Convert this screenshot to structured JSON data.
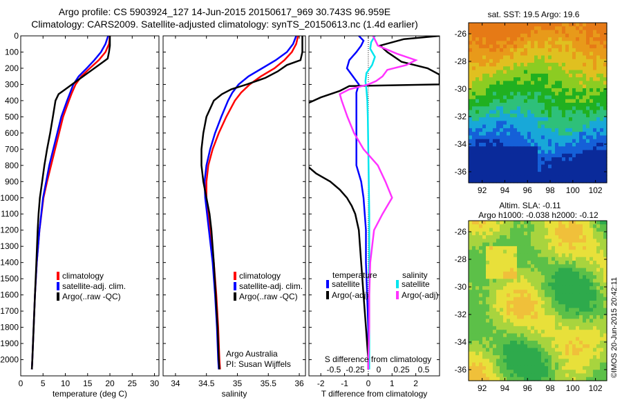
{
  "header": {
    "title_line1": "Argo profile: CS 5903924_127 14-Jun-2015 20150617_969 30.743S 96.959E",
    "title_line2": "Climatology: CARS2009. Satellite-adjusted climatology: synTS_20150613.nc (1.4d earlier)"
  },
  "colors": {
    "red": "#ff0000",
    "blue": "#0000ff",
    "black": "#000000",
    "cyan": "#00e5ee",
    "magenta": "#ff33ff"
  },
  "credit": "©IMOS 20-Jun-2015 20:42:11",
  "chart_data": [
    {
      "type": "line",
      "xlabel": "temperature (deg C)",
      "ylabel": "",
      "xlim": [
        0,
        31
      ],
      "ylim": [
        2100,
        0
      ],
      "xticks": [
        "0",
        "5",
        "10",
        "15",
        "20",
        "25",
        "30"
      ],
      "yticks": [
        "0",
        "100",
        "200",
        "300",
        "400",
        "500",
        "600",
        "700",
        "800",
        "900",
        "1000",
        "1100",
        "1200",
        "1300",
        "1400",
        "1500",
        "1600",
        "1700",
        "1800",
        "1900",
        "2000"
      ],
      "legend": [
        "climatology",
        "satellite-adj. clim.",
        "Argo(..raw -QC)"
      ],
      "legend_placement": "lower-middle",
      "series": [
        {
          "name": "climatology",
          "color": "red",
          "depth": [
            0,
            50,
            100,
            150,
            200,
            250,
            300,
            350,
            400,
            500,
            600,
            700,
            800,
            900,
            1000,
            1200,
            1400,
            1600,
            1800,
            2000,
            2060
          ],
          "values": [
            20,
            19.8,
            19,
            17.5,
            15.5,
            13.6,
            12.3,
            11.5,
            10.8,
            9.5,
            8.6,
            7.7,
            6.8,
            5.9,
            5.1,
            4.2,
            3.6,
            3.2,
            2.9,
            2.6,
            2.5
          ]
        },
        {
          "name": "satellite-adj. clim.",
          "color": "blue",
          "depth": [
            0,
            50,
            100,
            150,
            200,
            250,
            300,
            350,
            400,
            500,
            600,
            700,
            800,
            900,
            1000,
            1200,
            1400,
            1600,
            1800,
            2000,
            2060
          ],
          "values": [
            19.6,
            19,
            18,
            16.5,
            14.8,
            13,
            11.8,
            11.1,
            10.4,
            9.1,
            8.2,
            7.3,
            6.4,
            5.7,
            5,
            4.2,
            3.6,
            3.2,
            2.9,
            2.6,
            2.5
          ]
        },
        {
          "name": "Argo(..raw -QC)",
          "color": "black",
          "depth": [
            0,
            20,
            60,
            100,
            140,
            160,
            200,
            250,
            300,
            330,
            360,
            400,
            500,
            600,
            700,
            800,
            900,
            1000,
            1100,
            1200,
            1400,
            1600,
            1800,
            2000,
            2060
          ],
          "values": [
            20,
            20,
            20,
            19.8,
            19.5,
            18.5,
            16.5,
            14,
            11.5,
            10,
            8.5,
            7.8,
            7.2,
            6.6,
            5.9,
            5.3,
            4.8,
            4.3,
            4,
            3.8,
            3.5,
            3.2,
            2.9,
            2.6,
            2.5
          ]
        }
      ]
    },
    {
      "type": "line",
      "xlabel": "salinity",
      "ylabel": "",
      "xlim": [
        33.8,
        36.1
      ],
      "ylim": [
        2100,
        0
      ],
      "xticks": [
        "34",
        "34.5",
        "35",
        "35.5",
        "36"
      ],
      "legend": [
        "climatology",
        "satellite-adj. clim.",
        "Argo(..raw -QC)"
      ],
      "legend_placement": "lower-middle",
      "annotation": [
        "Argo Australia",
        "PI: Susan Wijffels"
      ],
      "series": [
        {
          "name": "climatology",
          "color": "red",
          "depth": [
            0,
            50,
            100,
            150,
            200,
            250,
            300,
            350,
            400,
            500,
            600,
            700,
            800,
            900,
            1000,
            1200,
            1400,
            1600,
            1800,
            2000,
            2060
          ],
          "values": [
            35.98,
            35.95,
            35.88,
            35.76,
            35.6,
            35.38,
            35.2,
            35.06,
            34.96,
            34.82,
            34.7,
            34.6,
            34.53,
            34.5,
            34.5,
            34.56,
            34.62,
            34.66,
            34.69,
            34.71,
            34.72
          ]
        },
        {
          "name": "satellite-adj. clim.",
          "color": "blue",
          "depth": [
            0,
            50,
            100,
            150,
            200,
            250,
            300,
            350,
            400,
            500,
            600,
            700,
            800,
            900,
            1000,
            1200,
            1400,
            1600,
            1800,
            2000,
            2060
          ],
          "values": [
            35.95,
            35.9,
            35.8,
            35.62,
            35.4,
            35.18,
            35.02,
            34.92,
            34.85,
            34.74,
            34.64,
            34.56,
            34.5,
            34.47,
            34.48,
            34.54,
            34.6,
            34.64,
            34.67,
            34.69,
            34.7
          ]
        },
        {
          "name": "Argo(..raw -QC)",
          "color": "black",
          "depth": [
            0,
            30,
            100,
            150,
            180,
            220,
            260,
            300,
            330,
            360,
            400,
            500,
            600,
            700,
            800,
            900,
            1000,
            1100,
            1200,
            1400,
            1600,
            1800,
            2000,
            2060
          ],
          "values": [
            36.05,
            36.05,
            36.05,
            36.02,
            35.8,
            35.65,
            35.45,
            35.15,
            34.9,
            34.75,
            34.62,
            34.5,
            34.45,
            34.42,
            34.42,
            34.45,
            34.5,
            34.55,
            34.58,
            34.62,
            34.65,
            34.68,
            34.7,
            34.71
          ]
        }
      ]
    },
    {
      "type": "line",
      "xlabel": "T difference from climatology",
      "xlabel2": "S difference from climatology",
      "xlim": [
        -2.5,
        3
      ],
      "ylim": [
        2100,
        0
      ],
      "xticks": [
        "-2",
        "-1",
        "0",
        "1",
        "2"
      ],
      "xticks_S": [
        "-0.5",
        "-0.25",
        "0",
        "0.25",
        "0.5"
      ],
      "legend_headers": [
        "temperature",
        "salinity"
      ],
      "legend": [
        "satellite",
        "Argo(-adj)",
        "satellite",
        "Argo(-adj)"
      ],
      "legend_placement": "lower-middle",
      "series": [
        {
          "name": "satellite",
          "color": "blue",
          "depth": [
            0,
            30,
            60,
            100,
            150,
            200,
            260,
            300,
            350,
            400,
            500,
            600,
            700,
            800,
            900,
            1000,
            1200,
            1400,
            1600,
            1800,
            2000,
            2060
          ],
          "values": [
            -0.4,
            -0.2,
            -0.3,
            -0.5,
            -0.8,
            -0.9,
            -0.6,
            -0.4,
            -0.5,
            -0.5,
            -0.5,
            -0.5,
            -0.5,
            -0.5,
            -0.3,
            -0.2,
            -0.1,
            -0.1,
            -0.05,
            0,
            0,
            0
          ]
        },
        {
          "name": "Argo(-adj)",
          "color": "black",
          "depth": [
            0,
            20,
            60,
            100,
            120,
            160,
            200,
            240,
            280,
            300,
            310,
            340,
            380,
            420,
            500,
            580,
            620,
            700,
            780,
            800,
            850,
            900,
            950,
            1000,
            1050,
            1100,
            1200,
            1400,
            1600,
            1800,
            2000,
            2060
          ],
          "values": [
            3,
            1.5,
            0.5,
            0.8,
            1,
            1.4,
            2.5,
            3,
            3,
            3,
            -0.8,
            -1.2,
            -2,
            -2.6,
            -2.6,
            -2.6,
            -2.6,
            -2.6,
            -2.6,
            -2.6,
            -2.2,
            -1.6,
            -1.2,
            -0.9,
            -0.7,
            -0.55,
            -0.4,
            -0.3,
            -0.2,
            -0.1,
            0,
            0
          ]
        },
        {
          "name": "satellite",
          "color": "cyan",
          "depth": [
            0,
            40,
            80,
            130,
            180,
            230,
            280,
            330,
            400,
            500,
            700,
            900,
            1100,
            1300,
            1500,
            1700,
            1900,
            2060
          ],
          "values": [
            0.07,
            0.03,
            0.02,
            0.07,
            0.04,
            -0.02,
            -0.03,
            -0.02,
            -0.01,
            -0.005,
            0,
            0.005,
            0.01,
            0.01,
            0.01,
            0.01,
            0.01,
            0.01
          ]
        },
        {
          "name": "Argo(-adj)",
          "color": "magenta",
          "depth": [
            0,
            60,
            110,
            150,
            180,
            210,
            250,
            280,
            300,
            330,
            360,
            400,
            500,
            600,
            700,
            800,
            900,
            1000,
            1100,
            1200,
            1400,
            1600,
            1800,
            2000,
            2060
          ],
          "values": [
            0.05,
            0.1,
            0.3,
            0.5,
            0.4,
            0.2,
            0.15,
            0.08,
            0,
            -0.2,
            -0.3,
            -0.28,
            -0.22,
            -0.15,
            -0.05,
            0.1,
            0.18,
            0.25,
            0.15,
            0.06,
            0.02,
            0.01,
            0.01,
            0,
            0
          ]
        }
      ]
    },
    {
      "type": "heatmap",
      "title": "sat. SST: 19.5 Argo: 19.6",
      "xlim": [
        90.8,
        103
      ],
      "ylim": [
        -36.8,
        -25.2
      ],
      "xticks": [
        "92",
        "94",
        "96",
        "98",
        "100",
        "102"
      ],
      "yticks": [
        "-26",
        "-28",
        "-30",
        "-32",
        "-34",
        "-36"
      ],
      "colormap": [
        "#0a2a9a",
        "#1560d8",
        "#18a8d8",
        "#2ec07a",
        "#20b020",
        "#8ccc22",
        "#e0c020",
        "#e89a1a",
        "#e67a16"
      ]
    },
    {
      "type": "heatmap",
      "title": "Altim. SLA: -0.11",
      "subtitle": "Argo h1000: -0.038 h2000: -0.12",
      "xlim": [
        90.8,
        103
      ],
      "ylim": [
        -36.8,
        -25.2
      ],
      "xticks": [
        "92",
        "94",
        "96",
        "98",
        "100",
        "102"
      ],
      "yticks": [
        "-26",
        "-28",
        "-30",
        "-32",
        "-34",
        "-36"
      ],
      "colormap": [
        "#2eaa4c",
        "#5cc048",
        "#a8d43e",
        "#e8e03a",
        "#f0c03a",
        "#e8943a"
      ]
    }
  ]
}
